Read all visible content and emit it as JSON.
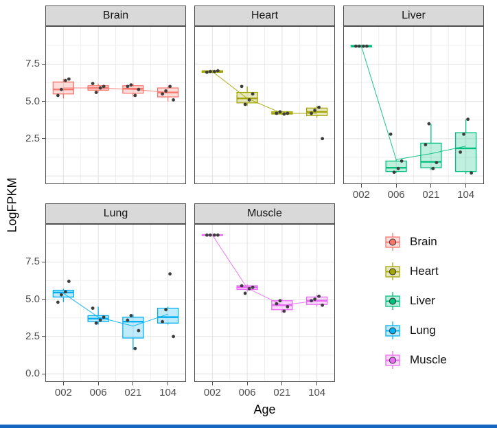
{
  "page": {
    "bottom_bar_color": "#1565c0"
  },
  "chart_data": {
    "type": "boxplot",
    "title": "",
    "xlabel": "Age",
    "ylabel": "LogFPKM",
    "categories": [
      "002",
      "006",
      "021",
      "104"
    ],
    "ylim": [
      -0.5,
      10.0
    ],
    "grid_major_y": [
      0.0,
      2.5,
      5.0,
      7.5
    ],
    "grid_minor_y": [
      1.25,
      3.75,
      6.25,
      8.75
    ],
    "yticks_top": [
      {
        "label": "7.5",
        "value": 7.5
      },
      {
        "label": "5.0",
        "value": 5.0
      },
      {
        "label": "2.5",
        "value": 2.5
      }
    ],
    "yticks_bottom": [
      {
        "label": "7.5",
        "value": 7.5
      },
      {
        "label": "5.0",
        "value": 5.0
      },
      {
        "label": "2.5",
        "value": 2.5
      },
      {
        "label": "0.0",
        "value": 0.0
      }
    ],
    "point_color": "#3d3d3d",
    "facets": [
      {
        "name": "Brain",
        "color": "#F8766D",
        "boxes": [
          {
            "lo": 5.2,
            "q1": 5.5,
            "med": 5.8,
            "q3": 6.3,
            "hi": 6.5,
            "points": [
              5.4,
              5.8,
              6.4,
              6.5
            ]
          },
          {
            "lo": 5.6,
            "q1": 5.75,
            "med": 5.9,
            "q3": 6.05,
            "hi": 6.2,
            "points": [
              5.6,
              5.9,
              6.0,
              6.2
            ]
          },
          {
            "lo": 5.3,
            "q1": 5.55,
            "med": 5.85,
            "q3": 6.05,
            "hi": 6.2,
            "points": [
              5.4,
              5.8,
              6.0,
              6.1
            ]
          },
          {
            "lo": 5.0,
            "q1": 5.3,
            "med": 5.6,
            "q3": 5.9,
            "hi": 6.0,
            "points": [
              5.1,
              5.5,
              5.7,
              6.0
            ]
          }
        ],
        "trend": [
          5.9,
          5.9,
          5.8,
          5.6
        ]
      },
      {
        "name": "Heart",
        "color": "#A3A500",
        "boxes": [
          {
            "lo": 6.9,
            "q1": 6.95,
            "med": 7.0,
            "q3": 7.05,
            "hi": 7.1,
            "points": [
              6.95,
              7.0,
              7.0,
              7.05
            ]
          },
          {
            "lo": 4.7,
            "q1": 4.9,
            "med": 5.2,
            "q3": 5.6,
            "hi": 6.0,
            "points": [
              4.8,
              5.1,
              5.5,
              6.0
            ]
          },
          {
            "lo": 4.1,
            "q1": 4.15,
            "med": 4.2,
            "q3": 4.3,
            "hi": 4.35,
            "points": [
              4.15,
              4.2,
              4.2,
              4.3
            ]
          },
          {
            "lo": 3.9,
            "q1": 4.05,
            "med": 4.3,
            "q3": 4.55,
            "hi": 4.7,
            "points": [
              2.5,
              4.2,
              4.4,
              4.6
            ]
          }
        ],
        "trend": [
          7.0,
          5.2,
          4.2,
          4.2
        ]
      },
      {
        "name": "Liver",
        "color": "#00BF7D",
        "boxes": [
          {
            "lo": 8.6,
            "q1": 8.65,
            "med": 8.7,
            "q3": 8.75,
            "hi": 8.8,
            "points": [
              8.7,
              8.7,
              8.7,
              8.7
            ]
          },
          {
            "lo": 0.2,
            "q1": 0.3,
            "med": 0.55,
            "q3": 1.0,
            "hi": 1.1,
            "points": [
              0.25,
              0.5,
              1.0,
              2.8
            ]
          },
          {
            "lo": 0.4,
            "q1": 0.55,
            "med": 0.95,
            "q3": 2.2,
            "hi": 3.5,
            "points": [
              0.5,
              0.9,
              2.1,
              3.5
            ]
          },
          {
            "lo": 0.15,
            "q1": 0.3,
            "med": 1.85,
            "q3": 2.9,
            "hi": 3.8,
            "points": [
              0.2,
              1.6,
              2.8,
              3.8
            ]
          }
        ],
        "trend": [
          8.7,
          1.1,
          1.5,
          2.0
        ]
      },
      {
        "name": "Lung",
        "color": "#00B0F6",
        "boxes": [
          {
            "lo": 4.8,
            "q1": 5.15,
            "med": 5.45,
            "q3": 5.6,
            "hi": 5.7,
            "points": [
              4.8,
              5.3,
              5.5,
              6.2
            ]
          },
          {
            "lo": 3.3,
            "q1": 3.5,
            "med": 3.7,
            "q3": 3.9,
            "hi": 4.5,
            "points": [
              3.4,
              3.6,
              3.8,
              4.4
            ]
          },
          {
            "lo": 1.6,
            "q1": 2.4,
            "med": 3.5,
            "q3": 3.8,
            "hi": 4.0,
            "points": [
              1.7,
              2.9,
              3.6,
              3.9
            ]
          },
          {
            "lo": 3.3,
            "q1": 3.4,
            "med": 3.8,
            "q3": 4.4,
            "hi": 4.5,
            "points": [
              2.5,
              3.5,
              4.3,
              6.7
            ]
          }
        ],
        "trend": [
          5.4,
          3.8,
          3.2,
          4.0
        ]
      },
      {
        "name": "Muscle",
        "color": "#E76BF3",
        "boxes": [
          {
            "lo": 9.25,
            "q1": 9.28,
            "med": 9.3,
            "q3": 9.33,
            "hi": 9.35,
            "points": [
              9.3,
              9.3,
              9.3,
              9.3
            ]
          },
          {
            "lo": 5.5,
            "q1": 5.65,
            "med": 5.8,
            "q3": 5.9,
            "hi": 6.0,
            "points": [
              5.4,
              5.7,
              5.8,
              5.9
            ]
          },
          {
            "lo": 4.1,
            "q1": 4.3,
            "med": 4.6,
            "q3": 4.9,
            "hi": 5.0,
            "points": [
              4.2,
              4.5,
              4.7,
              4.9
            ]
          },
          {
            "lo": 4.5,
            "q1": 4.65,
            "med": 4.9,
            "q3": 5.15,
            "hi": 5.3,
            "points": [
              4.6,
              4.9,
              5.0,
              5.2
            ]
          }
        ],
        "trend": [
          9.3,
          5.75,
          4.6,
          4.9
        ]
      }
    ],
    "legend": {
      "items": [
        {
          "label": "Brain",
          "color": "#F8766D"
        },
        {
          "label": "Heart",
          "color": "#A3A500"
        },
        {
          "label": "Liver",
          "color": "#00BF7D"
        },
        {
          "label": "Lung",
          "color": "#00B0F6"
        },
        {
          "label": "Muscle",
          "color": "#E76BF3"
        }
      ]
    }
  }
}
